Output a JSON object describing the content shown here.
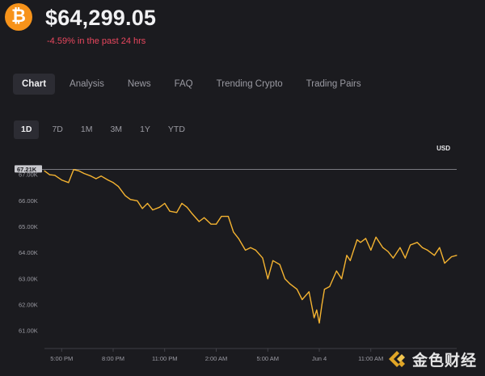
{
  "header": {
    "coin_icon": "bitcoin-icon",
    "coin_glyph": "₿",
    "price": "$64,299.05",
    "change": "-4.59% in the past 24 hrs"
  },
  "tabs": [
    {
      "label": "Chart",
      "active": true
    },
    {
      "label": "Analysis",
      "active": false
    },
    {
      "label": "News",
      "active": false
    },
    {
      "label": "FAQ",
      "active": false
    },
    {
      "label": "Trending Crypto",
      "active": false
    },
    {
      "label": "Trading Pairs",
      "active": false
    }
  ],
  "ranges": [
    {
      "label": "1D",
      "active": true
    },
    {
      "label": "7D",
      "active": false
    },
    {
      "label": "1M",
      "active": false
    },
    {
      "label": "3M",
      "active": false
    },
    {
      "label": "1Y",
      "active": false
    },
    {
      "label": "YTD",
      "active": false
    }
  ],
  "colors": {
    "background": "#1b1b1f",
    "line": "#f4b331",
    "negative": "#e9475e",
    "brand": "#f7931a"
  },
  "watermark": {
    "icon": "jinse-logo-icon",
    "text": "金色财经"
  },
  "chart_data": {
    "type": "line",
    "currency": "USD",
    "reference_label": "67.21K",
    "reference_value": 67210,
    "ylim": [
      60600,
      67750
    ],
    "y_ticks": [
      61000,
      62000,
      63000,
      64000,
      65000,
      66000,
      67000
    ],
    "y_tick_labels": [
      "61.00K",
      "62.00K",
      "63.00K",
      "64.00K",
      "65.00K",
      "66.00K",
      "67.00K"
    ],
    "x_tick_labels": [
      "5:00 PM",
      "8:00 PM",
      "11:00 PM",
      "2:00 AM",
      "5:00 AM",
      "Jun 4",
      "11:00 AM"
    ],
    "grid": false,
    "series": [
      {
        "x": [
          0,
          0.3,
          0.6,
          1.0,
          1.4,
          1.7,
          2.0,
          2.3,
          2.7,
          3.0,
          3.3,
          3.7,
          4.0,
          4.3,
          4.7,
          5.0,
          5.4,
          5.7,
          6.0,
          6.3,
          6.7,
          7.0,
          7.3,
          7.7,
          8.0,
          8.3,
          8.6,
          9.0,
          9.3,
          9.7,
          10.0,
          10.3,
          10.7,
          11.0,
          11.3,
          11.7,
          12.0,
          12.3,
          12.7,
          13.0,
          13.3,
          13.7,
          14.0,
          14.3,
          14.7,
          15.0,
          15.4,
          15.7,
          15.85,
          16.0,
          16.15,
          16.3,
          16.6,
          17.0,
          17.3,
          17.6,
          17.8,
          18.0,
          18.2,
          18.4,
          18.7,
          19.0,
          19.3,
          19.7,
          20.0,
          20.3,
          20.7,
          21.0,
          21.3,
          21.7,
          22.0,
          22.3,
          22.7,
          23.0,
          23.3,
          23.7,
          24.0
        ],
        "y": [
          67150,
          67000,
          66980,
          66800,
          66700,
          67200,
          67150,
          67050,
          66950,
          66850,
          66950,
          66800,
          66700,
          66550,
          66200,
          66050,
          66000,
          65700,
          65900,
          65650,
          65750,
          65900,
          65600,
          65550,
          65900,
          65750,
          65500,
          65200,
          65350,
          65100,
          65100,
          65400,
          65400,
          64800,
          64550,
          64100,
          64200,
          64100,
          63800,
          63000,
          63700,
          63550,
          63000,
          62800,
          62600,
          62200,
          62500,
          61500,
          61800,
          61300,
          62000,
          62600,
          62700,
          63300,
          63000,
          63900,
          63700,
          64100,
          64500,
          64400,
          64550,
          64100,
          64600,
          64200,
          64050,
          63800,
          64200,
          63800,
          64300,
          64400,
          64200,
          64100,
          63900,
          64200,
          63600,
          63850,
          63900
        ]
      }
    ]
  }
}
